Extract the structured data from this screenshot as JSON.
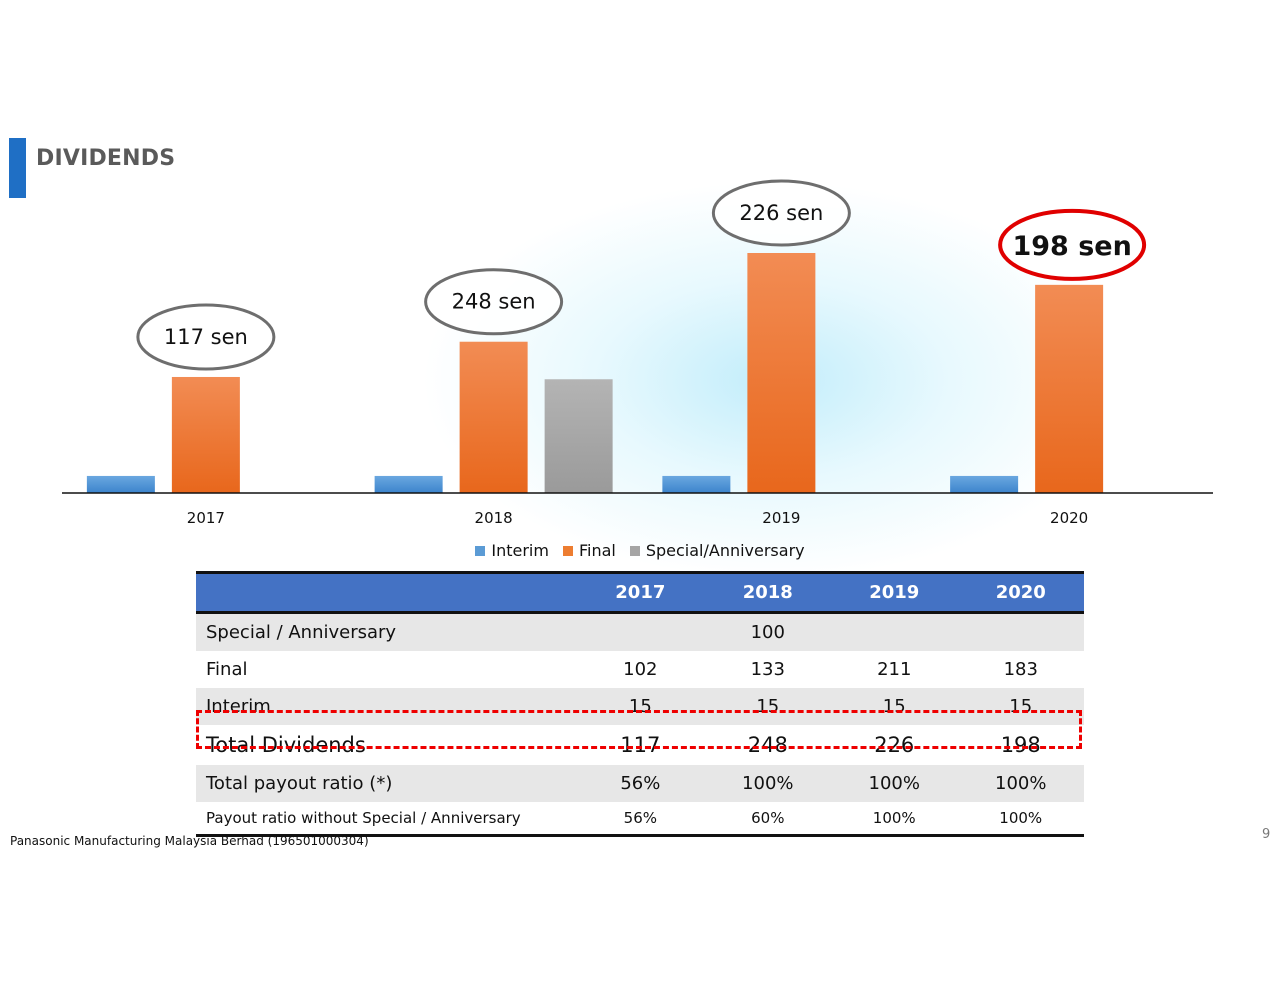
{
  "title": "DIVIDENDS",
  "footer": "Panasonic Manufacturing Malaysia Berhad (196501000304)",
  "page_number": "9",
  "colors": {
    "interim": "#5b9bd5",
    "final": "#ed7d31",
    "special": "#a5a5a5",
    "accent": "#1f6fc5",
    "table_header": "#4472c4",
    "highlight": "#e00000"
  },
  "chart_data": {
    "type": "bar",
    "categories": [
      "2017",
      "2018",
      "2019",
      "2020"
    ],
    "series": [
      {
        "name": "Interim",
        "values": [
          15,
          15,
          15,
          15
        ]
      },
      {
        "name": "Final",
        "values": [
          102,
          133,
          211,
          183
        ]
      },
      {
        "name": "Special/Anniversary",
        "values": [
          null,
          100,
          null,
          null
        ]
      }
    ],
    "totals": [
      "117 sen",
      "248 sen",
      "226 sen",
      "198 sen"
    ],
    "highlight_index": 3,
    "ylim": [
      0,
      250
    ],
    "legend_position": "bottom"
  },
  "table": {
    "headers": [
      "",
      "2017",
      "2018",
      "2019",
      "2020"
    ],
    "rows": [
      {
        "label": "Special / Anniversary",
        "values": [
          "",
          "100",
          "",
          ""
        ]
      },
      {
        "label": "Final",
        "values": [
          "102",
          "133",
          "211",
          "183"
        ]
      },
      {
        "label": "Interim",
        "values": [
          "15",
          "15",
          "15",
          "15"
        ]
      },
      {
        "label": "Total Dividends",
        "values": [
          "117",
          "248",
          "226",
          "198"
        ]
      },
      {
        "label": "Total payout ratio (*)",
        "values": [
          "56%",
          "100%",
          "100%",
          "100%"
        ]
      },
      {
        "label": "Payout ratio without Special / Anniversary",
        "values": [
          "56%",
          "60%",
          "100%",
          "100%"
        ]
      }
    ]
  }
}
